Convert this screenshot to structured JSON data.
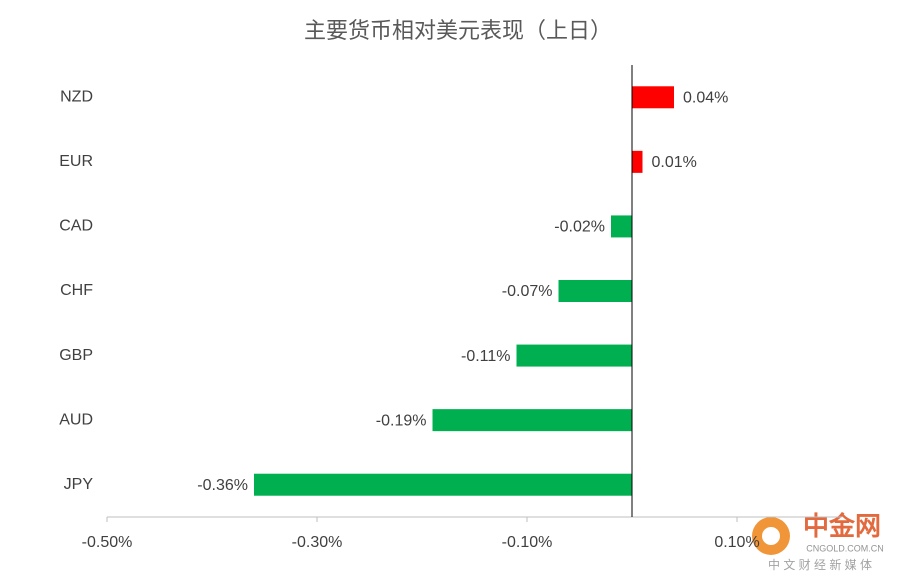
{
  "chart_data": {
    "type": "bar",
    "orientation": "horizontal",
    "title": "主要货币相对美元表现（上日）",
    "categories": [
      "NZD",
      "EUR",
      "CAD",
      "CHF",
      "GBP",
      "AUD",
      "JPY"
    ],
    "values": [
      0.04,
      0.01,
      -0.02,
      -0.07,
      -0.11,
      -0.19,
      -0.36
    ],
    "value_labels": [
      "0.04%",
      "0.01%",
      "-0.02%",
      "-0.07%",
      "-0.11%",
      "-0.19%",
      "-0.36%"
    ],
    "positive_color": "#ff0000",
    "negative_color": "#00b050",
    "xlim": [
      -0.5,
      0.2
    ],
    "xticks": [
      {
        "value": -0.5,
        "label": "-0.50%"
      },
      {
        "value": -0.3,
        "label": "-0.30%"
      },
      {
        "value": -0.1,
        "label": "-0.10%"
      },
      {
        "value": 0.1,
        "label": "0.10%"
      }
    ],
    "grid": false
  },
  "watermark": {
    "brand": "中金网",
    "site": "CNGOLD.COM.CN",
    "tagline": "中 文 财 经 新 媒 体"
  }
}
